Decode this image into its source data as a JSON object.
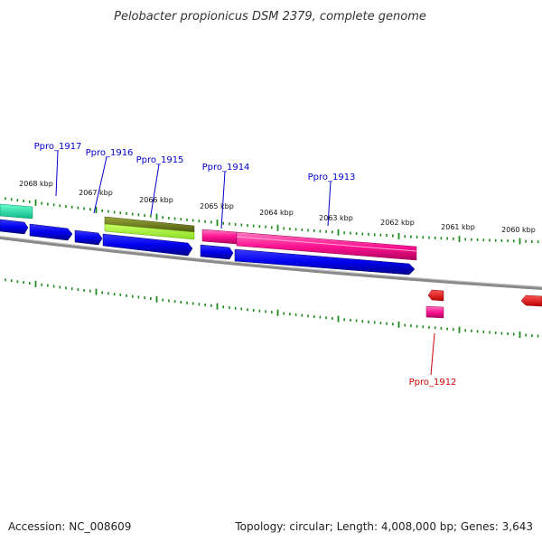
{
  "title": "Pelobacter propionicus DSM 2379, complete genome",
  "footer": {
    "accession": "Accession: NC_008609",
    "topology": "Topology: circular; Length: 4,008,000 bp; Genes: 3,643"
  },
  "tick_labels": [
    "2068 kbp",
    "2067 kbp",
    "2066 kbp",
    "2065 kbp",
    "2064 kbp",
    "2063 kbp",
    "2062 kbp",
    "2061 kbp",
    "2060 kbp"
  ],
  "gene_labels": {
    "ppro_1917": "Ppro_1917",
    "ppro_1916": "Ppro_1916",
    "ppro_1915": "Ppro_1915",
    "ppro_1914": "Ppro_1914",
    "ppro_1913": "Ppro_1913",
    "ppro_1912": "Ppro_1912"
  },
  "colors": {
    "forward_gene": "#0000ee",
    "magenta_gene": "#ff1493",
    "olive_gene": "#7a8a1a",
    "lime_gene": "#aaff33",
    "teal_gene": "#22e8a8",
    "red_gene": "#ff0000",
    "tick": "#1e8a1e",
    "backbone": "#888888",
    "label_blue": "#0000cc",
    "label_red": "#cc0000"
  }
}
